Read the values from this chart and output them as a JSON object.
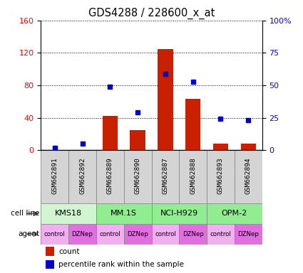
{
  "title": "GDS4288 / 228600_x_at",
  "samples": [
    "GSM662891",
    "GSM662892",
    "GSM662889",
    "GSM662890",
    "GSM662887",
    "GSM662888",
    "GSM662893",
    "GSM662894"
  ],
  "counts": [
    0,
    0,
    42,
    25,
    125,
    63,
    8,
    8
  ],
  "percentiles": [
    2,
    5,
    49,
    29,
    59,
    53,
    24,
    23
  ],
  "cell_line_data": [
    {
      "start": 0,
      "end": 2,
      "label": "KMS18",
      "color": "#d0f5d0"
    },
    {
      "start": 2,
      "end": 4,
      "label": "MM.1S",
      "color": "#90ee90"
    },
    {
      "start": 4,
      "end": 6,
      "label": "NCI-H929",
      "color": "#90ee90"
    },
    {
      "start": 6,
      "end": 8,
      "label": "OPM-2",
      "color": "#90ee90"
    }
  ],
  "agents": [
    "control",
    "DZNep",
    "control",
    "DZNep",
    "control",
    "DZNep",
    "control",
    "DZNep"
  ],
  "agent_color_control": "#f0b0f0",
  "agent_color_dznep": "#e070e0",
  "bar_color": "#c82000",
  "dot_color": "#0000cc",
  "left_ylim": [
    0,
    160
  ],
  "right_ylim": [
    0,
    100
  ],
  "left_yticks": [
    0,
    40,
    80,
    120,
    160
  ],
  "right_yticks": [
    0,
    25,
    50,
    75,
    100
  ],
  "right_yticklabels": [
    "0",
    "25",
    "50",
    "75",
    "100%"
  ],
  "bar_width": 0.55,
  "sample_bg_color": "#d4d4d4",
  "sample_border_color": "#888888",
  "left_label_color": "red",
  "right_label_color": "blue"
}
